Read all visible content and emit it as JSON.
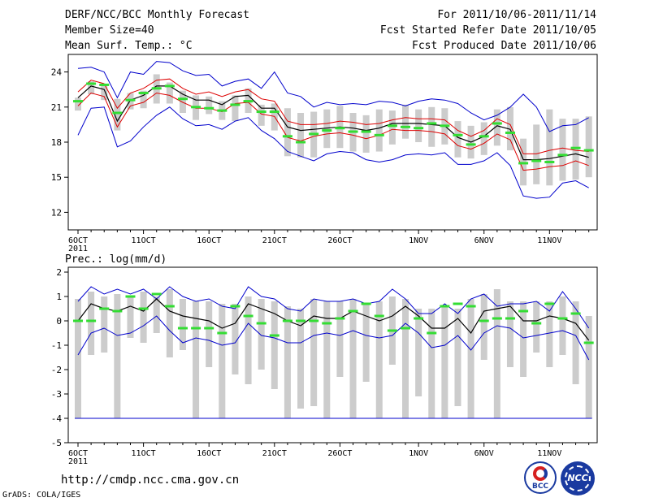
{
  "header": {
    "title": "DERF/NCC/BCC Monthly Forecast",
    "member": "Member Size=40",
    "variable": "Mean Surf. Temp.: °C",
    "period": "For 2011/10/06-2011/11/14",
    "started": "Fcst Started Refer Date 2011/10/05",
    "produced": "Fcst Produced Date 2011/10/06"
  },
  "footer": {
    "url": "http://cmdp.ncc.cma.gov.cn",
    "credit": "GrADS: COLA/IGES",
    "logo1": "BCC",
    "logo2": "NCC"
  },
  "colors": {
    "envelope": "#0000cc",
    "spread": "#dd0000",
    "mean": "#000000",
    "box": "#cccccc",
    "member": "#33dd33",
    "floor": "#0000cc"
  },
  "chart_data": [
    {
      "type": "line",
      "title": "Mean Surf. Temp.: °C",
      "xlabels": [
        "6OCT",
        "11OCT",
        "16OCT",
        "21OCT",
        "26OCT",
        "1NOV",
        "6NOV",
        "11NOV"
      ],
      "year_label": "2011",
      "ylim": [
        10.5,
        25.5
      ],
      "yticks": [
        12,
        15,
        18,
        21,
        24
      ],
      "x": [
        1,
        2,
        3,
        4,
        5,
        6,
        7,
        8,
        9,
        10,
        11,
        12,
        13,
        14,
        15,
        16,
        17,
        18,
        19,
        20,
        21,
        22,
        23,
        24,
        25,
        26,
        27,
        28,
        29,
        30,
        31,
        32,
        33,
        34,
        35,
        36,
        37,
        38,
        39,
        40
      ],
      "series": [
        {
          "name": "max",
          "values": [
            24.3,
            24.4,
            24.0,
            21.8,
            24.0,
            23.8,
            24.9,
            24.8,
            24.1,
            23.7,
            23.8,
            22.8,
            23.2,
            23.4,
            22.6,
            24.0,
            22.2,
            21.9,
            21.0,
            21.4,
            21.2,
            21.3,
            21.2,
            21.5,
            21.4,
            21.1,
            21.5,
            21.7,
            21.6,
            21.3,
            20.5,
            19.9,
            20.3,
            21.0,
            22.1,
            21.0,
            18.9,
            19.4,
            19.5,
            20.1
          ]
        },
        {
          "name": "upper",
          "values": [
            22.3,
            23.3,
            23.0,
            20.9,
            22.2,
            22.6,
            23.3,
            23.4,
            22.6,
            22.1,
            22.3,
            21.9,
            22.3,
            22.5,
            21.7,
            21.5,
            19.8,
            19.5,
            19.5,
            19.6,
            19.8,
            19.7,
            19.5,
            19.6,
            19.9,
            20.1,
            20.0,
            20.0,
            19.9,
            19.0,
            18.5,
            19.0,
            20.0,
            19.5,
            17.0,
            17.0,
            17.3,
            17.5,
            17.3,
            17.2
          ]
        },
        {
          "name": "mean",
          "values": [
            21.8,
            22.8,
            22.5,
            19.8,
            21.6,
            22.0,
            22.8,
            22.8,
            22.1,
            21.6,
            21.6,
            21.2,
            21.9,
            22.0,
            20.9,
            20.9,
            19.3,
            19.0,
            19.1,
            19.2,
            19.3,
            19.2,
            19.0,
            19.2,
            19.6,
            19.6,
            19.6,
            19.5,
            19.4,
            18.4,
            18.0,
            18.5,
            19.4,
            19.1,
            16.5,
            16.5,
            16.6,
            16.8,
            17.0,
            16.7
          ]
        },
        {
          "name": "lower",
          "values": [
            21.1,
            22.2,
            21.9,
            19.3,
            21.1,
            21.4,
            22.2,
            22.0,
            21.4,
            20.9,
            20.9,
            20.6,
            21.3,
            21.4,
            20.4,
            20.2,
            18.4,
            18.1,
            18.5,
            18.7,
            18.8,
            18.6,
            18.3,
            18.6,
            19.1,
            19.0,
            19.0,
            18.9,
            18.7,
            17.7,
            17.4,
            17.9,
            18.7,
            18.2,
            15.6,
            15.7,
            15.9,
            16.0,
            16.4,
            16.0
          ]
        },
        {
          "name": "min",
          "values": [
            18.6,
            20.9,
            21.0,
            17.6,
            18.1,
            19.3,
            20.3,
            21.0,
            20.0,
            19.4,
            19.5,
            19.1,
            19.8,
            20.1,
            19.0,
            18.3,
            17.2,
            16.8,
            16.4,
            17.0,
            17.2,
            17.1,
            16.5,
            16.3,
            16.5,
            16.9,
            17.0,
            16.9,
            17.1,
            16.1,
            16.1,
            16.4,
            17.1,
            16.0,
            13.4,
            13.2,
            13.3,
            14.5,
            14.7,
            14.1
          ]
        },
        {
          "name": "box_high",
          "values": [
            21.8,
            23.2,
            22.9,
            21.7,
            22.2,
            22.4,
            23.8,
            23.1,
            22.4,
            22.0,
            21.9,
            21.5,
            22.0,
            22.6,
            21.2,
            21.3,
            20.9,
            20.5,
            20.6,
            20.8,
            21.1,
            20.5,
            20.3,
            20.8,
            20.7,
            21.2,
            20.8,
            21.0,
            20.9,
            19.8,
            19.4,
            19.7,
            20.8,
            21.0,
            18.3,
            19.5,
            20.8,
            20.0,
            20.0,
            20.2
          ]
        },
        {
          "name": "box_low",
          "values": [
            20.7,
            22.1,
            21.6,
            19.0,
            20.8,
            20.9,
            21.3,
            21.3,
            20.5,
            19.9,
            20.4,
            19.9,
            19.8,
            20.5,
            19.4,
            19.0,
            16.8,
            16.7,
            16.7,
            17.5,
            17.5,
            17.2,
            17.1,
            17.2,
            17.8,
            18.3,
            18.0,
            17.6,
            17.8,
            16.7,
            16.6,
            16.9,
            17.7,
            17.3,
            14.3,
            14.4,
            14.3,
            14.7,
            14.8,
            15.0
          ]
        },
        {
          "name": "member",
          "values": [
            21.5,
            23.0,
            22.9,
            20.5,
            21.6,
            22.2,
            22.6,
            22.8,
            21.7,
            21.0,
            20.9,
            20.7,
            21.2,
            21.5,
            20.6,
            20.6,
            18.5,
            18.0,
            18.7,
            19.0,
            19.2,
            18.9,
            18.9,
            18.6,
            19.4,
            19.3,
            19.2,
            19.6,
            19.4,
            18.6,
            17.8,
            18.5,
            19.6,
            18.8,
            16.2,
            16.4,
            16.3,
            16.9,
            17.5,
            17.3
          ]
        }
      ]
    },
    {
      "type": "line",
      "title": "Prec.: log(mm/d)",
      "xlabels": [
        "6OCT",
        "11OCT",
        "16OCT",
        "21OCT",
        "26OCT",
        "1NOV",
        "6NOV",
        "11NOV"
      ],
      "year_label": "2011",
      "ylim": [
        -5,
        2.2
      ],
      "yticks": [
        -5,
        -4,
        -3,
        -2,
        -1,
        0,
        1,
        2
      ],
      "floor": -4,
      "x": [
        1,
        2,
        3,
        4,
        5,
        6,
        7,
        8,
        9,
        10,
        11,
        12,
        13,
        14,
        15,
        16,
        17,
        18,
        19,
        20,
        21,
        22,
        23,
        24,
        25,
        26,
        27,
        28,
        29,
        30,
        31,
        32,
        33,
        34,
        35,
        36,
        37,
        38,
        39,
        40
      ],
      "series": [
        {
          "name": "max",
          "values": [
            0.8,
            1.4,
            1.1,
            1.3,
            1.1,
            1.3,
            0.9,
            1.4,
            1.0,
            0.8,
            0.9,
            0.6,
            0.5,
            1.4,
            1.0,
            0.9,
            0.5,
            0.4,
            0.9,
            0.8,
            0.8,
            0.9,
            0.7,
            0.8,
            1.3,
            0.9,
            0.3,
            0.3,
            0.7,
            0.3,
            0.9,
            1.1,
            0.6,
            0.7,
            0.7,
            0.8,
            0.4,
            1.2,
            0.5,
            -0.3
          ]
        },
        {
          "name": "mean",
          "values": [
            0.0,
            0.7,
            0.5,
            0.4,
            0.6,
            0.4,
            0.9,
            0.4,
            0.2,
            0.1,
            0.0,
            -0.3,
            -0.1,
            0.7,
            0.5,
            0.3,
            0.0,
            -0.2,
            0.2,
            0.1,
            0.1,
            0.4,
            0.2,
            0.0,
            0.2,
            0.6,
            0.2,
            -0.3,
            -0.3,
            0.1,
            -0.5,
            0.4,
            0.5,
            0.6,
            0.0,
            0.0,
            0.2,
            0.1,
            -0.1,
            -0.8
          ]
        },
        {
          "name": "min",
          "values": [
            -1.4,
            -0.5,
            -0.3,
            -0.6,
            -0.5,
            -0.2,
            0.2,
            -0.4,
            -0.9,
            -0.7,
            -0.8,
            -1.0,
            -0.9,
            -0.1,
            -0.6,
            -0.7,
            -0.9,
            -0.9,
            -0.6,
            -0.5,
            -0.6,
            -0.4,
            -0.6,
            -0.7,
            -0.6,
            -0.1,
            -0.5,
            -1.1,
            -1.0,
            -0.6,
            -1.2,
            -0.5,
            -0.2,
            -0.3,
            -0.7,
            -0.6,
            -0.5,
            -0.4,
            -0.6,
            -1.6
          ]
        },
        {
          "name": "box_high",
          "values": [
            0.9,
            1.2,
            1.0,
            1.1,
            1.0,
            1.2,
            1.0,
            1.3,
            0.9,
            0.8,
            0.8,
            0.7,
            0.7,
            1.0,
            0.9,
            0.8,
            0.6,
            0.5,
            0.9,
            0.8,
            0.8,
            0.9,
            0.7,
            0.8,
            1.0,
            0.9,
            0.5,
            0.5,
            0.6,
            0.5,
            0.9,
            1.1,
            1.3,
            0.8,
            0.8,
            0.8,
            0.8,
            1.0,
            0.8,
            0.2
          ]
        },
        {
          "name": "box_low",
          "values": [
            -4.0,
            -1.4,
            -1.3,
            -4.0,
            -0.7,
            -0.9,
            -0.5,
            -1.5,
            -1.2,
            -4.0,
            -1.9,
            -4.0,
            -2.2,
            -2.6,
            -2.0,
            -2.8,
            -4.0,
            -3.6,
            -3.5,
            -4.0,
            -2.3,
            -4.0,
            -2.5,
            -4.0,
            -1.8,
            -4.0,
            -3.1,
            -4.0,
            -4.0,
            -3.5,
            -4.0,
            -1.6,
            -4.0,
            -1.9,
            -2.3,
            -1.3,
            -1.9,
            -1.4,
            -2.6,
            -4.0
          ]
        },
        {
          "name": "member",
          "values": [
            0.0,
            0.0,
            0.5,
            0.4,
            1.0,
            0.5,
            1.1,
            0.6,
            -0.3,
            -0.3,
            -0.3,
            -0.5,
            0.6,
            0.2,
            -0.1,
            -0.6,
            0.0,
            0.0,
            0.0,
            -0.1,
            0.1,
            0.4,
            0.7,
            0.2,
            -0.4,
            -0.3,
            0.1,
            -0.5,
            0.6,
            0.7,
            0.6,
            0.0,
            0.1,
            0.1,
            0.4,
            -0.1,
            0.7,
            0.1,
            0.3,
            -0.9
          ]
        }
      ]
    }
  ]
}
